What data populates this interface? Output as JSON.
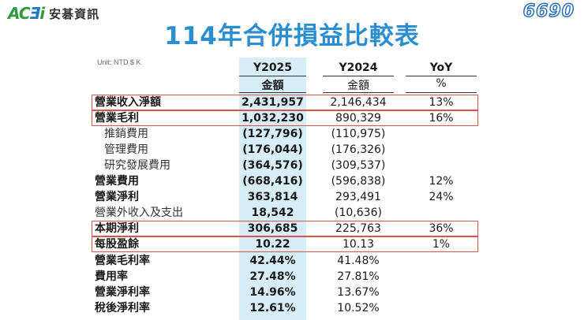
{
  "header": {
    "logo_mark_a": "AC",
    "logo_mark_b": "Ǝ",
    "logo_mark_c": "i",
    "company_name": "安碁資訊",
    "stock_code": "6690",
    "title": "114年合併損益比較表"
  },
  "unit": "Unit: NTD $ K",
  "columns": {
    "y2025": "Y2025",
    "y2024": "Y2024",
    "yoy": "YoY",
    "amount_2025": "金額",
    "amount_2024": "金額",
    "percent": "%"
  },
  "rows": [
    {
      "label": "營業收入淨額",
      "y2025": "2,431,957",
      "y2024": "2,146,434",
      "yoy": "13%"
    },
    {
      "label": "營業毛利",
      "y2025": "1,032,230",
      "y2024": "890,329",
      "yoy": "16%"
    },
    {
      "label": "推銷費用",
      "y2025": "(127,796)",
      "y2024": "(110,975)",
      "yoy": ""
    },
    {
      "label": "管理費用",
      "y2025": "(176,044)",
      "y2024": "(176,326)",
      "yoy": ""
    },
    {
      "label": "研究發展費用",
      "y2025": "(364,576)",
      "y2024": "(309,537)",
      "yoy": ""
    },
    {
      "label": "營業費用",
      "y2025": "(668,416)",
      "y2024": "(596,838)",
      "yoy": "12%"
    },
    {
      "label": "營業淨利",
      "y2025": "363,814",
      "y2024": "293,491",
      "yoy": "24%"
    },
    {
      "label": "營業外收入及支出",
      "y2025": "18,542",
      "y2024": "(10,636)",
      "yoy": ""
    },
    {
      "label": "本期淨利",
      "y2025": "306,685",
      "y2024": "225,763",
      "yoy": "36%"
    },
    {
      "label": "每股盈餘",
      "y2025": "10.22",
      "y2024": "10.13",
      "yoy": "1%"
    },
    {
      "label": "營業毛利率",
      "y2025": "42.44%",
      "y2024": "41.48%",
      "yoy": ""
    },
    {
      "label": "費用率",
      "y2025": "27.48%",
      "y2024": "27.81%",
      "yoy": ""
    },
    {
      "label": "營業淨利率",
      "y2025": "14.96%",
      "y2024": "13.67%",
      "yoy": ""
    },
    {
      "label": "稅後淨利率",
      "y2025": "12.61%",
      "y2024": "10.52%",
      "yoy": ""
    }
  ],
  "colors": {
    "title": "#2b8ed1",
    "highlight_column": "#d7eef8",
    "highlight_box": "#d9534f"
  }
}
